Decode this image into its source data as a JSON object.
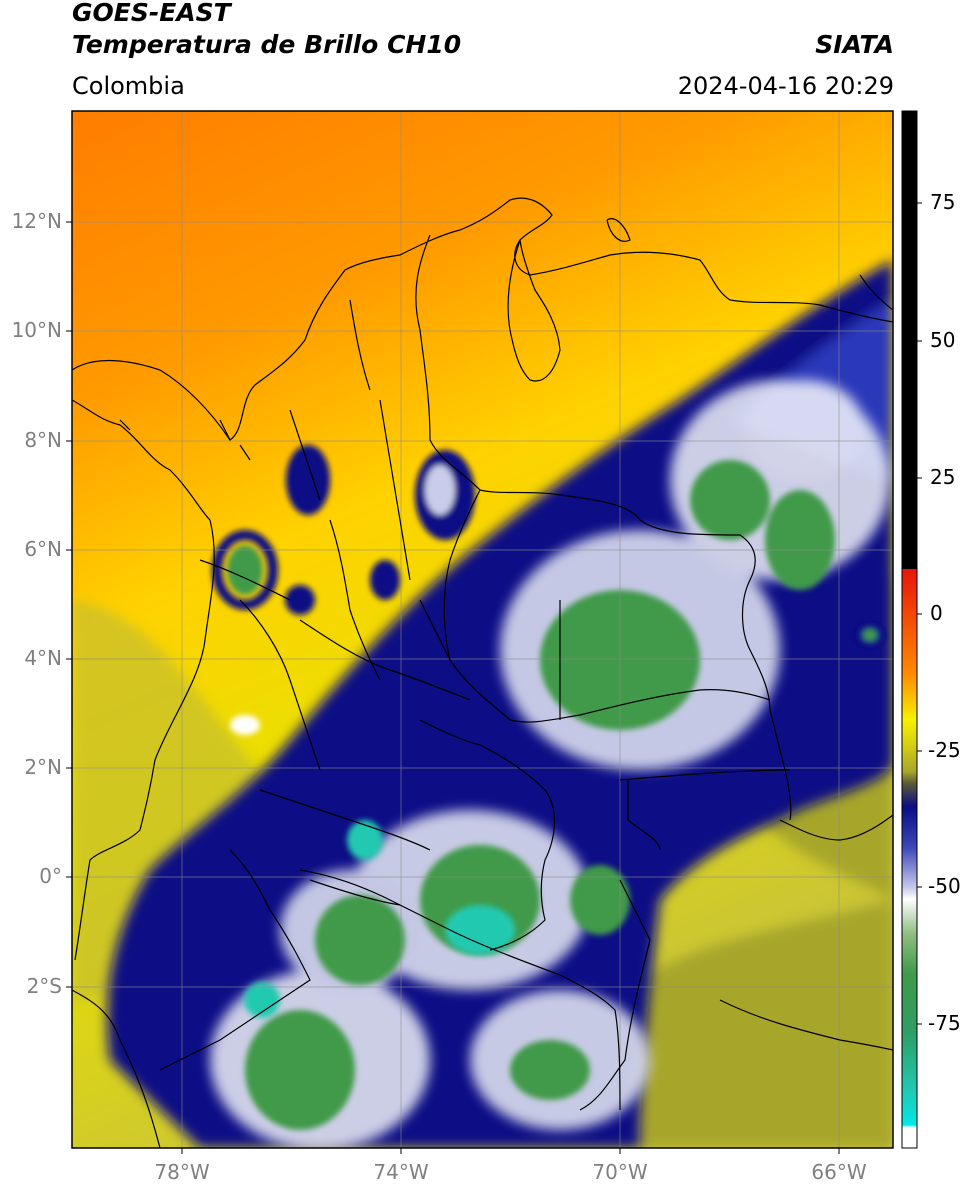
{
  "header": {
    "satellite": "GOES-EAST",
    "product": "Temperatura de Brillo CH10",
    "region": "Colombia",
    "agency": "SIATA",
    "timestamp": "2024-04-16 20:29"
  },
  "map": {
    "lat_ticks": [
      "12°N",
      "10°N",
      "8°N",
      "6°N",
      "4°N",
      "2°N",
      "0°",
      "2°S"
    ],
    "lon_ticks": [
      "78°W",
      "74°W",
      "70°W",
      "66°W"
    ],
    "grid": true
  },
  "colorbar": {
    "ticks": [
      "75",
      "50",
      "25",
      "0",
      "-25",
      "-50",
      "-75"
    ],
    "colors": {
      "black": "#000000",
      "red": "#e8150a",
      "orange": "#ff8a00",
      "yellow": "#f7f000",
      "olive": "#a7a62a",
      "navy": "#0a0d85",
      "white": "#ffffff",
      "green": "#3f9a4a",
      "teal": "#20c9b1",
      "cyan": "#00e8e8"
    }
  }
}
